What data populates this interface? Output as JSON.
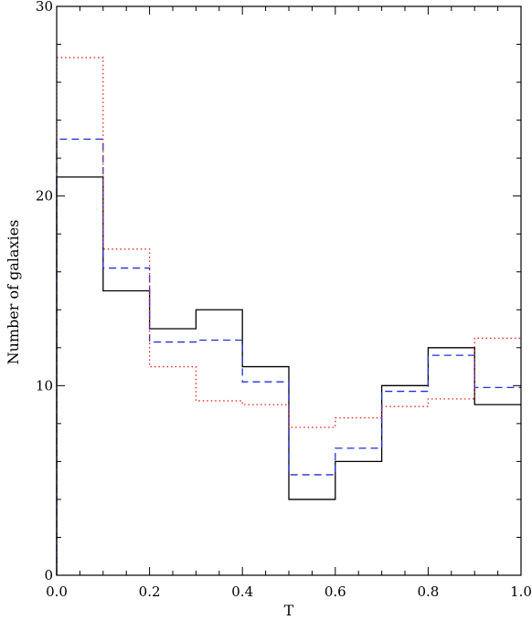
{
  "chart_data": {
    "type": "histogram-step",
    "title": "",
    "xlabel": "T",
    "ylabel": "Number of galaxies",
    "xlim": [
      0.0,
      1.0
    ],
    "ylim": [
      0,
      30
    ],
    "x_ticks": [
      0.0,
      0.2,
      0.4,
      0.6,
      0.8,
      1.0
    ],
    "x_tick_labels": [
      "0.0",
      "0.2",
      "0.4",
      "0.6",
      "0.8",
      "1.0"
    ],
    "x_minor_step": 0.05,
    "y_ticks": [
      0,
      10,
      20,
      30
    ],
    "y_tick_labels": [
      "0",
      "10",
      "20",
      "30"
    ],
    "y_minor_step": 2,
    "grid": false,
    "bin_edges": [
      0.0,
      0.1,
      0.2,
      0.3,
      0.4,
      0.5,
      0.6,
      0.7,
      0.8,
      0.9,
      1.0
    ],
    "series": [
      {
        "style": "solid",
        "color": "#000000",
        "values": [
          21,
          15,
          13,
          14,
          11,
          4,
          6,
          10,
          12,
          9
        ]
      },
      {
        "style": "dashed",
        "color": "#1f2fd6",
        "values": [
          23,
          16.2,
          12.3,
          12.4,
          10.2,
          5.3,
          6.7,
          9.7,
          11.6,
          9.9
        ]
      },
      {
        "style": "dotted",
        "color": "#e8201c",
        "values": [
          27.3,
          17.2,
          11,
          9.2,
          9,
          7.8,
          8.3,
          8.9,
          9.3,
          12.5
        ]
      }
    ]
  }
}
